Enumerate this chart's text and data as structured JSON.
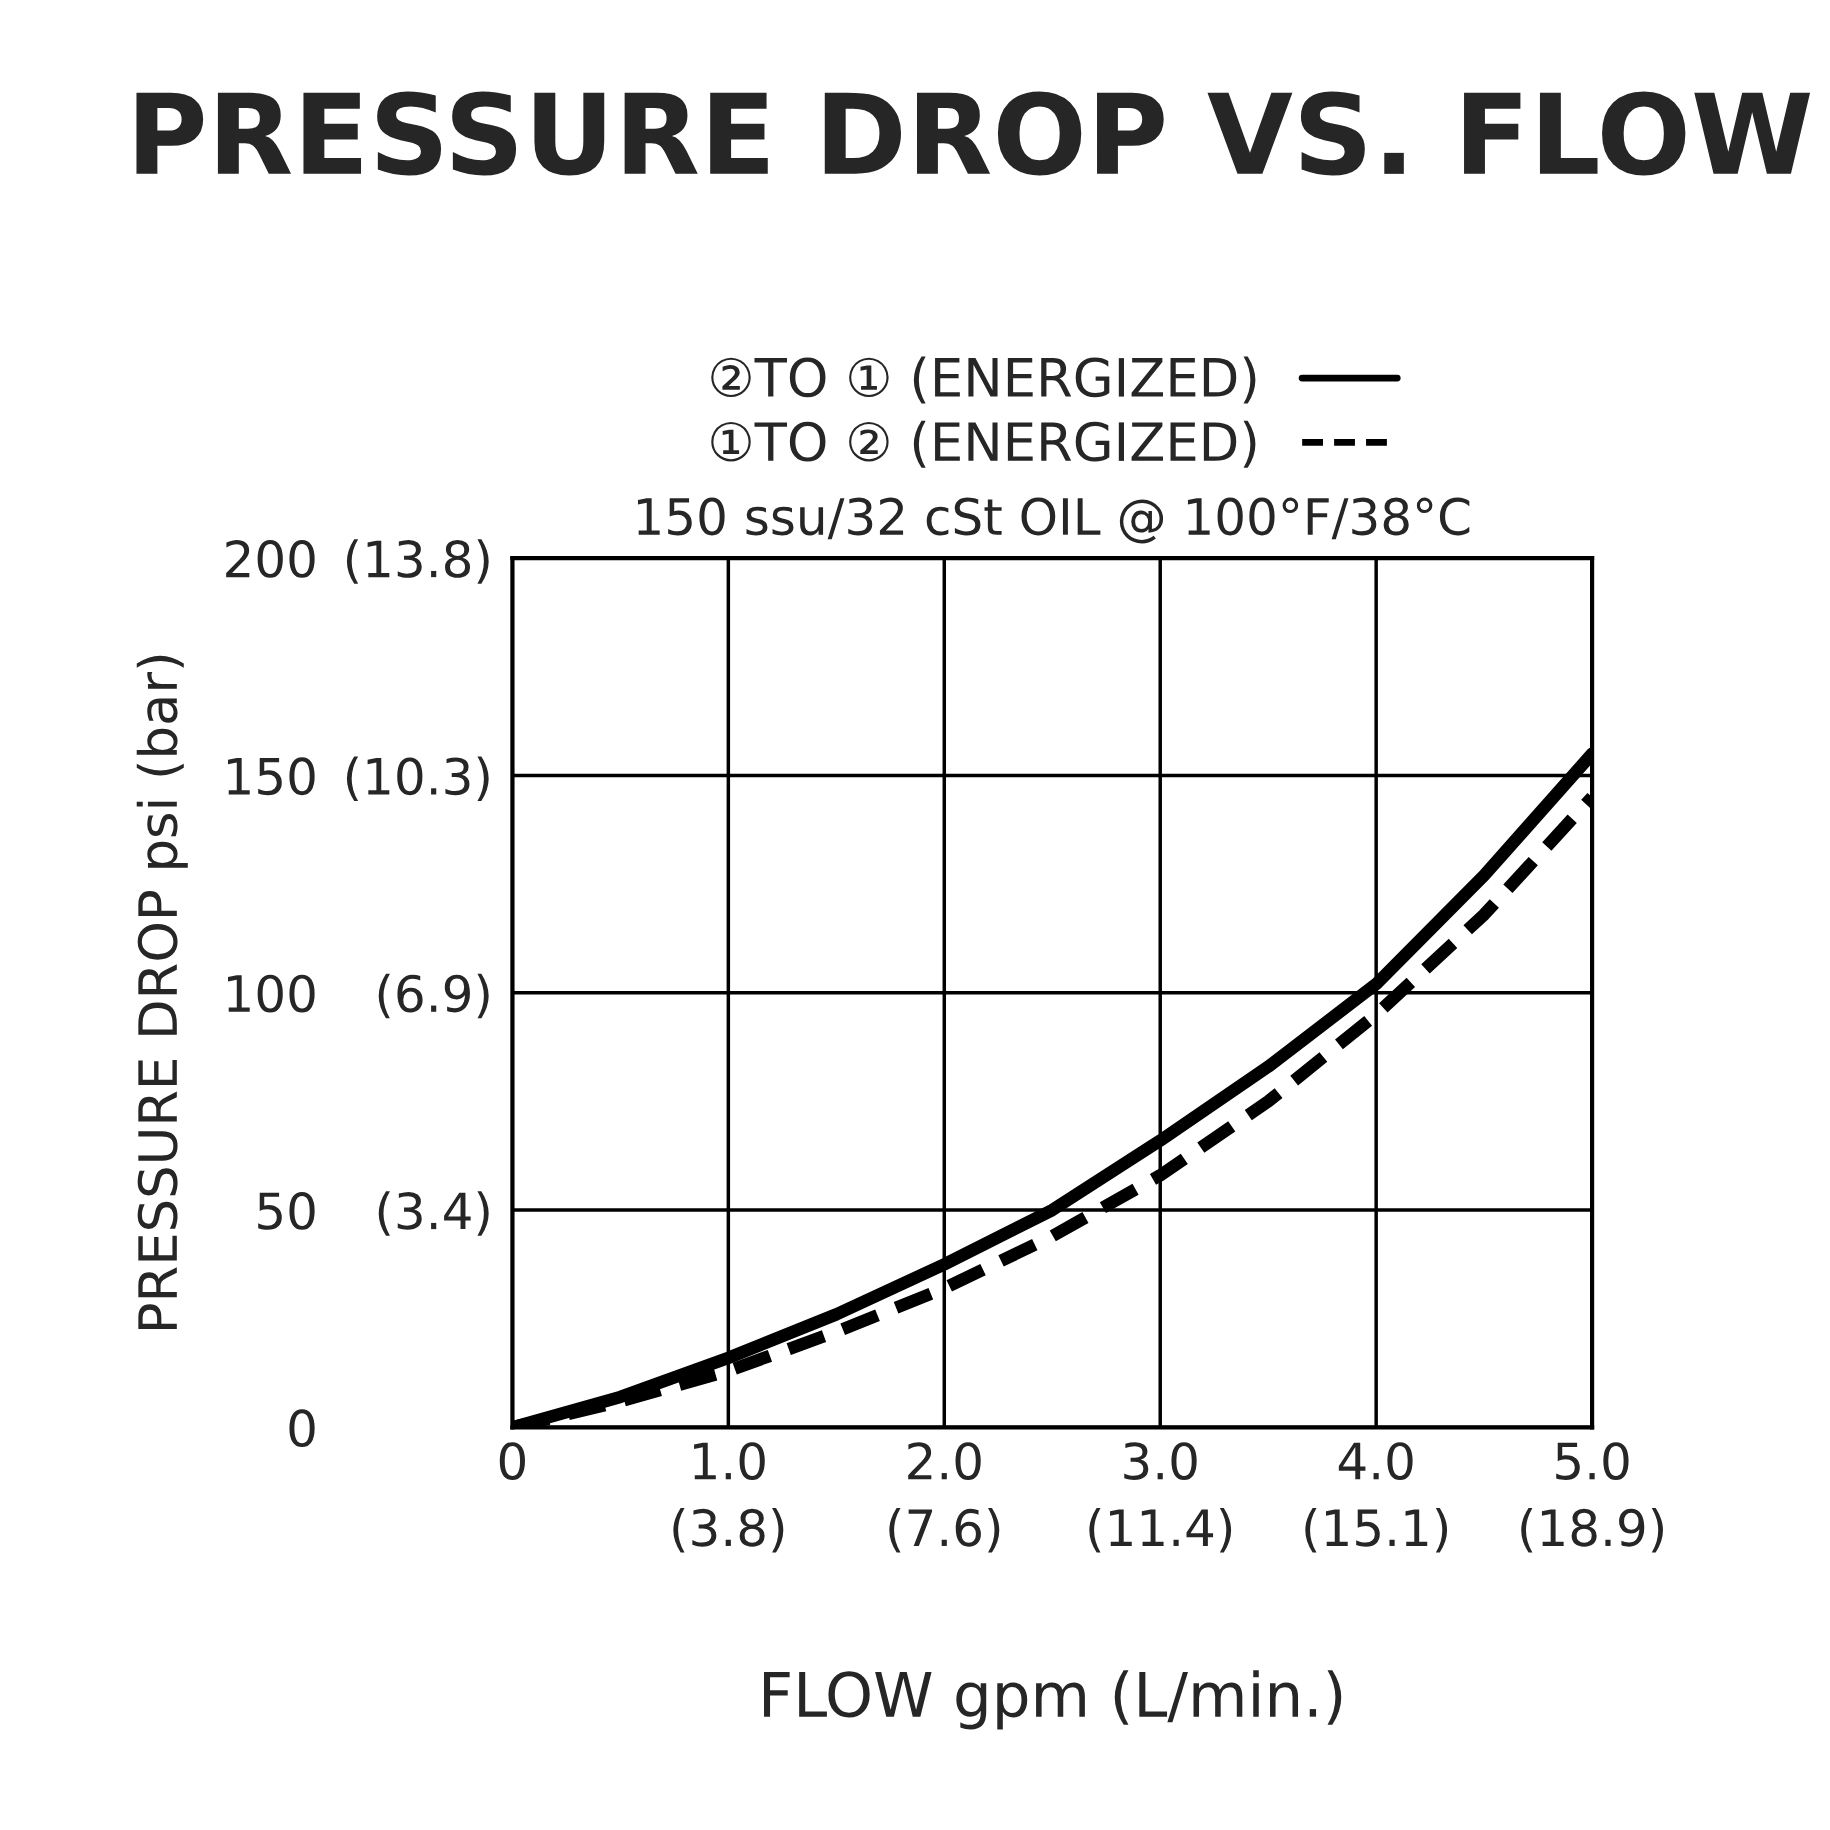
{
  "chart_data": {
    "type": "line",
    "title": "PRESSURE DROP VS. FLOW",
    "xlabel": "FLOW gpm (L/min.)",
    "ylabel": "PRESSURE DROP psi (bar)",
    "annotations": [
      "150 ssu/32 cSt OIL @ 100°F/38°C"
    ],
    "x": [
      0,
      0.5,
      1,
      1.5,
      2,
      2.5,
      3,
      3.5,
      4,
      4.5,
      5
    ],
    "series": [
      {
        "name": "②TO ① (ENERGIZED)",
        "color": "#000000",
        "line_style": "solid",
        "values": [
          0,
          7,
          16,
          26,
          37.5,
          50,
          66,
          83,
          102,
          127,
          155
        ]
      },
      {
        "name": "①TO ② (ENERGIZED)",
        "color": "#000000",
        "line_style": "dashed",
        "values": [
          0,
          6,
          13,
          22,
          32,
          44,
          58,
          75,
          95,
          118,
          145
        ]
      }
    ],
    "xlim": [
      0,
      5
    ],
    "xticks": [
      0,
      {
        "value": 1,
        "label": "1.0"
      },
      {
        "value": 2,
        "label": "2.0"
      },
      {
        "value": 3,
        "label": "3.0"
      },
      {
        "value": 4,
        "label": "4.0"
      },
      {
        "value": 5,
        "label": "5.0"
      }
    ],
    "x2lim": [
      0,
      18.927
    ],
    "x2ticks": [
      {
        "value": 3.785,
        "label": "(3.8)"
      },
      {
        "value": 7.571,
        "label": "(7.6)"
      },
      {
        "value": 11.356,
        "label": "(11.4)"
      },
      {
        "value": 15.142,
        "label": "(15.1)"
      },
      {
        "value": 18.927,
        "label": "(18.9)"
      }
    ],
    "ylim": [
      0,
      200
    ],
    "yticks": [
      0,
      50,
      100,
      150,
      200
    ],
    "y2lim": [
      0,
      13.79
    ],
    "y2ticks": [
      {
        "value": 3.447,
        "label": "(3.4)"
      },
      {
        "value": 6.895,
        "label": "(6.9)"
      },
      {
        "value": 10.342,
        "label": "(10.3)"
      },
      {
        "value": 13.79,
        "label": "(13.8)"
      }
    ],
    "grid": true,
    "legend": "top",
    "marker": "none"
  }
}
